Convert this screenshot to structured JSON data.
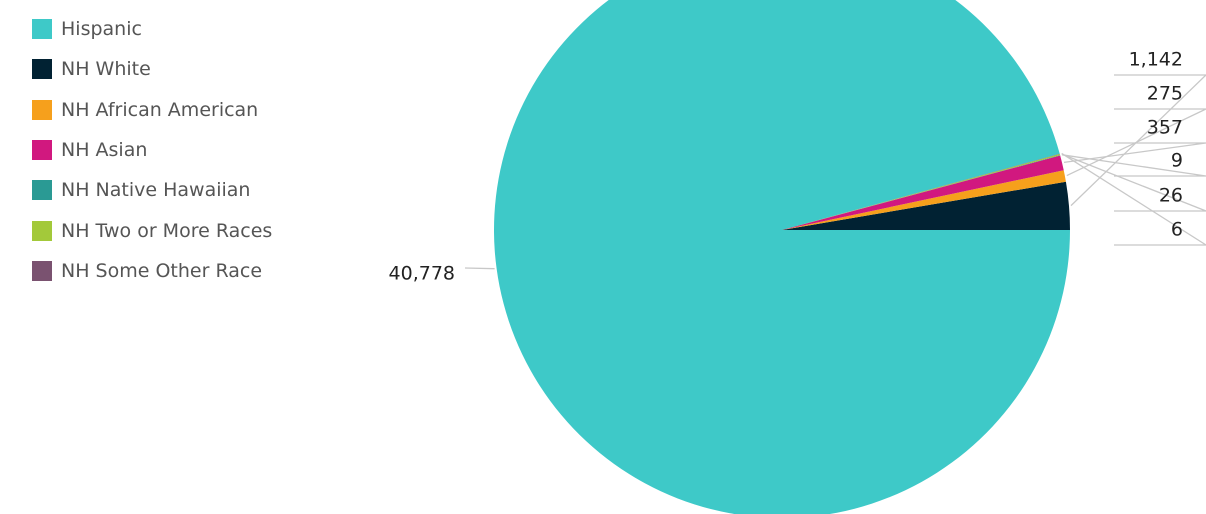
{
  "chart_data": {
    "type": "pie",
    "categories": [
      "Hispanic",
      "NH White",
      "NH African American",
      "NH Asian",
      "NH Native Hawaiian",
      "NH Two or More Races",
      "NH Some Other Race"
    ],
    "values": [
      40778,
      1142,
      275,
      357,
      9,
      26,
      6
    ],
    "value_labels": [
      "40,778",
      "1,142",
      "275",
      "357",
      "9",
      "26",
      "6"
    ],
    "colors": [
      "#3ec9c8",
      "#012233",
      "#f6a01c",
      "#d1187f",
      "#2a9a94",
      "#a3c93a",
      "#7a5270"
    ],
    "legend": "top-left"
  }
}
